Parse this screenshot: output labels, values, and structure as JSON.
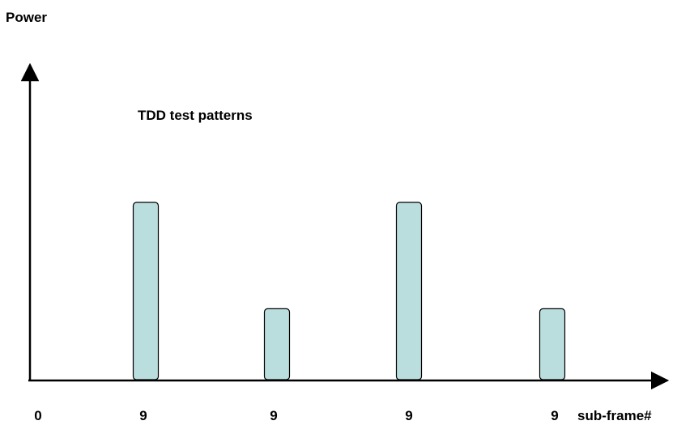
{
  "axes": {
    "y_label": "Power",
    "x_label": "sub-frame#"
  },
  "annotation": {
    "text": "TDD test patterns"
  },
  "colors": {
    "bar_fill": "#b9dedd",
    "bar_stroke": "#000000",
    "axis": "#000000"
  },
  "chart_data": {
    "type": "bar",
    "title": "TDD test patterns",
    "ylabel": "Power",
    "xlabel": "sub-frame#",
    "tick_labels": [
      "0",
      "9",
      "9",
      "9",
      "9"
    ],
    "bars": [
      {
        "label": "9",
        "value": 1.0
      },
      {
        "label": "9",
        "value": 0.4
      },
      {
        "label": "9",
        "value": 1.0
      },
      {
        "label": "9",
        "value": 0.4
      }
    ]
  }
}
